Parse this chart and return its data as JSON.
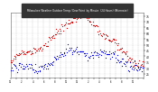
{
  "title": "Milwaukee Weather Outdoor Temp / Dew Point  by Minute  (24 Hours) (Alternate)",
  "temp_color": "#dd0000",
  "dew_color": "#0000dd",
  "bg_color": "#ffffff",
  "grid_color": "#888888",
  "title_bg": "#333333",
  "title_fg": "#ffffff",
  "ylim": [
    22,
    78
  ],
  "ytick_values": [
    25,
    30,
    35,
    40,
    45,
    50,
    55,
    60,
    65,
    70,
    75
  ],
  "n_points": 1440,
  "temp_seed": 42,
  "dew_seed": 99
}
